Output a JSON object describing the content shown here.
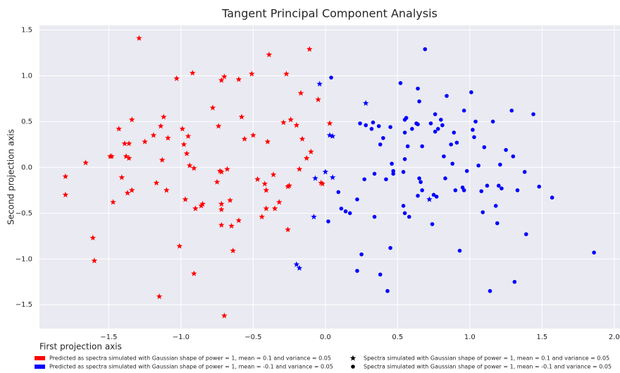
{
  "chart_data": {
    "type": "scatter",
    "title": "Tangent Principal Component Analysis",
    "xlabel": "First projection axis",
    "ylabel": "Second projection axis",
    "xlim": [
      -1.98,
      2.04
    ],
    "ylim": [
      -1.76,
      1.55
    ],
    "xticks": [
      {
        "value": -1.5,
        "label": "−1.5"
      },
      {
        "value": -1.0,
        "label": "−1.0"
      },
      {
        "value": -0.5,
        "label": "−0.5"
      },
      {
        "value": 0,
        "label": "0.0"
      },
      0.5,
      {
        "value": 1.0,
        "label": "1.0"
      },
      1.5,
      {
        "value": 2.0,
        "label": "2.0"
      }
    ],
    "yticks": [
      {
        "value": -1.5,
        "label": "−1.5"
      },
      {
        "value": -1.0,
        "label": "−1.0"
      },
      {
        "value": -0.5,
        "label": "−0.5"
      },
      {
        "value": 0,
        "label": "0.0"
      },
      0.5,
      {
        "value": 1.0,
        "label": "1.0"
      },
      1.5
    ],
    "grid": true,
    "series": [
      {
        "color": "#ff0000",
        "marker": "star",
        "x": [
          -1.8,
          -1.8,
          -1.66,
          -1.61,
          -1.6,
          -1.49,
          -1.48,
          -1.47,
          -1.43,
          -1.41,
          -1.39,
          -1.38,
          -1.37,
          -1.36,
          -1.36,
          -1.34,
          -1.34,
          -1.29,
          -1.25,
          -1.19,
          -1.17,
          -1.14,
          -1.13,
          -1.15,
          -1.12,
          -1.1,
          -1.09,
          -1.03,
          -1.01,
          -0.99,
          -0.98,
          -0.97,
          -0.96,
          -0.95,
          -0.94,
          -0.92,
          -0.91,
          -0.9,
          -0.91,
          -0.86,
          -0.85,
          -0.78,
          -0.75,
          -0.74,
          -0.73,
          -0.72,
          -0.72,
          -0.72,
          -0.72,
          -0.72,
          -0.7,
          -0.7,
          -0.68,
          -0.66,
          -0.65,
          -0.64,
          -0.6,
          -0.6,
          -0.58,
          -0.56,
          -0.51,
          -0.5,
          -0.47,
          -0.44,
          -0.42,
          -0.41,
          -0.41,
          -0.4,
          -0.39,
          -0.36,
          -0.35,
          -0.32,
          -0.29,
          -0.27,
          -0.26,
          -0.26,
          -0.25,
          -0.24,
          -0.2,
          -0.18,
          -0.17,
          -0.16,
          -0.13,
          -0.11,
          -0.1,
          -0.05,
          -0.03,
          -0.02,
          0.03
        ],
        "y": [
          -0.1,
          -0.3,
          0.05,
          -0.77,
          -1.02,
          0.12,
          0.12,
          -0.38,
          0.42,
          -0.11,
          0.26,
          0.12,
          -0.28,
          0.26,
          0.1,
          -0.25,
          0.52,
          1.41,
          0.28,
          0.35,
          -0.17,
          0.45,
          0.08,
          -1.41,
          0.55,
          -0.25,
          0.32,
          0.97,
          -0.86,
          0.42,
          0.25,
          -0.35,
          0.15,
          0.34,
          0.02,
          1.03,
          -0.01,
          -0.45,
          -1.16,
          -0.42,
          -0.4,
          0.65,
          -0.16,
          0.45,
          -0.04,
          -0.05,
          -0.4,
          -0.46,
          -0.63,
          0.95,
          0.99,
          -1.62,
          -0.02,
          -0.36,
          -0.64,
          -0.91,
          -0.58,
          0.96,
          0.55,
          0.31,
          1.02,
          0.35,
          -0.13,
          -0.54,
          -0.18,
          -0.25,
          -0.45,
          0.28,
          1.23,
          -0.08,
          -0.45,
          -0.38,
          0.49,
          1.02,
          -0.21,
          -0.68,
          -0.2,
          0.52,
          0.46,
          -0.02,
          0.81,
          0.31,
          0.1,
          1.29,
          0.17,
          0.74,
          -0.17,
          -0.18,
          0.48
        ]
      },
      {
        "color": "#0000ff",
        "marker": "star",
        "x": [
          -0.04,
          -0.08,
          -0.07,
          0.0,
          0.03,
          0.05,
          0.05,
          -0.2,
          -0.18,
          0.28,
          0.72
        ],
        "y": [
          0.91,
          -0.54,
          -0.12,
          -0.05,
          0.35,
          0.34,
          -0.11,
          -1.06,
          -1.1,
          0.7,
          -0.35
        ]
      },
      {
        "color": "#0000ff",
        "marker": "circle",
        "x": [
          0.02,
          0.04,
          0.09,
          0.11,
          0.14,
          0.17,
          0.22,
          0.22,
          0.24,
          0.25,
          0.27,
          0.28,
          0.32,
          0.33,
          0.34,
          0.34,
          0.37,
          0.38,
          0.38,
          0.4,
          0.42,
          0.43,
          0.45,
          0.45,
          0.46,
          0.47,
          0.47,
          0.52,
          0.54,
          0.54,
          0.55,
          0.55,
          0.55,
          0.55,
          0.56,
          0.57,
          0.58,
          0.6,
          0.63,
          0.64,
          0.64,
          0.64,
          0.65,
          0.65,
          0.66,
          0.67,
          0.67,
          0.69,
          0.73,
          0.74,
          0.75,
          0.76,
          0.76,
          0.77,
          0.78,
          0.8,
          0.81,
          0.82,
          0.83,
          0.84,
          0.87,
          0.88,
          0.89,
          0.9,
          0.91,
          0.93,
          0.95,
          0.96,
          0.96,
          0.98,
          1.01,
          1.02,
          1.03,
          1.04,
          1.06,
          1.08,
          1.09,
          1.1,
          1.12,
          1.14,
          1.16,
          1.18,
          1.19,
          1.2,
          1.21,
          1.22,
          1.25,
          1.29,
          1.3,
          1.31,
          1.33,
          1.38,
          1.39,
          1.44,
          1.48,
          1.57,
          1.86
        ],
        "y": [
          -0.59,
          0.98,
          -0.27,
          -0.45,
          -0.48,
          -0.5,
          -0.35,
          -1.13,
          0.48,
          -0.95,
          -0.13,
          0.46,
          0.42,
          0.49,
          -0.07,
          -0.54,
          0.45,
          -1.17,
          0.25,
          0.32,
          -0.13,
          -1.35,
          -0.88,
          0.44,
          0.04,
          -0.04,
          -0.07,
          0.92,
          -0.05,
          -0.42,
          0.38,
          -0.5,
          0.09,
          0.52,
          0.54,
          0.23,
          -0.54,
          0.42,
          0.48,
          0.47,
          0.86,
          -0.31,
          0.72,
          -0.12,
          -0.16,
          0.23,
          -0.25,
          1.29,
          0.48,
          -0.62,
          -0.3,
          0.58,
          0.39,
          -0.32,
          0.42,
          0.52,
          0.46,
          0.12,
          -0.12,
          0.78,
          0.25,
          0.04,
          0.38,
          -0.25,
          0.27,
          -0.91,
          -0.22,
          -0.25,
          0.62,
          -0.04,
          0.82,
          0.41,
          0.33,
          0.5,
          0.02,
          -0.26,
          -0.49,
          0.22,
          -0.2,
          -1.35,
          0.5,
          -0.42,
          -0.61,
          -0.2,
          0.03,
          -0.23,
          0.19,
          0.62,
          0.12,
          -1.25,
          -0.25,
          -0.05,
          -0.73,
          0.58,
          -0.21,
          -0.33,
          -0.93
        ]
      }
    ],
    "legend": [
      {
        "label": "Predicted as spectra simulated with Gaussian shape of power = 1, mean = 0.1 and variance = 0.05",
        "color": "#ff0000"
      },
      {
        "label": "Predicted as spectra simulated with Gaussian shape of power = 1, mean = -0.1 and variance = 0.05",
        "color": "#0000ff"
      },
      {
        "label": "Spectra simulated with Gaussian shape of power = 1, mean = 0.1 and variance = 0.05",
        "marker": "star"
      },
      {
        "label": "Spectra simulated with Gaussian shape of power = 1, mean = -0.1 and variance = 0.05",
        "marker": "circle"
      }
    ]
  }
}
